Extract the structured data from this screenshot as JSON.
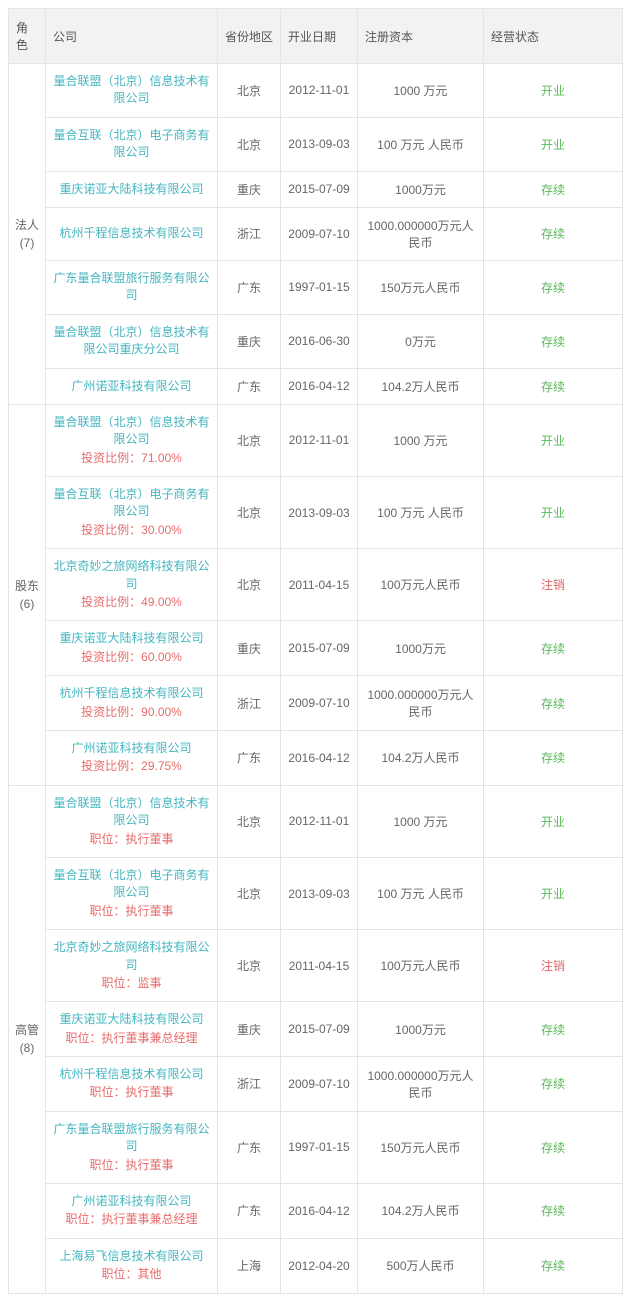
{
  "table": {
    "columns": [
      "角色",
      "公司",
      "省份地区",
      "开业日期",
      "注册资本",
      "经营状态"
    ],
    "colors": {
      "company": "#45b6c0",
      "sub": "#e96b6b",
      "status_green": "#5cb85c",
      "status_red": "#e06666",
      "header_bg": "#f2f2f2",
      "border": "#e4e4e4",
      "text": "#666666"
    },
    "sections": [
      {
        "role": "法人",
        "count": "(7)",
        "rows": [
          {
            "company": "量合联盟（北京）信息技术有限公司",
            "sub": "",
            "province": "北京",
            "date": "2012-11-01",
            "capital": "1000 万元",
            "status": "开业",
            "status_color": "green"
          },
          {
            "company": "量合互联（北京）电子商务有限公司",
            "sub": "",
            "province": "北京",
            "date": "2013-09-03",
            "capital": "100 万元 人民币",
            "status": "开业",
            "status_color": "green"
          },
          {
            "company": "重庆诺亚大陆科技有限公司",
            "sub": "",
            "province": "重庆",
            "date": "2015-07-09",
            "capital": "1000万元",
            "status": "存续",
            "status_color": "green"
          },
          {
            "company": "杭州千程信息技术有限公司",
            "sub": "",
            "province": "浙江",
            "date": "2009-07-10",
            "capital": "1000.000000万元人民币",
            "status": "存续",
            "status_color": "green"
          },
          {
            "company": "广东量合联盟旅行服务有限公司",
            "sub": "",
            "province": "广东",
            "date": "1997-01-15",
            "capital": "150万元人民币",
            "status": "存续",
            "status_color": "green"
          },
          {
            "company": "量合联盟（北京）信息技术有限公司重庆分公司",
            "sub": "",
            "province": "重庆",
            "date": "2016-06-30",
            "capital": "0万元",
            "status": "存续",
            "status_color": "green"
          },
          {
            "company": "广州诺亚科技有限公司",
            "sub": "",
            "province": "广东",
            "date": "2016-04-12",
            "capital": "104.2万人民币",
            "status": "存续",
            "status_color": "green"
          }
        ]
      },
      {
        "role": "股东",
        "count": "(6)",
        "rows": [
          {
            "company": "量合联盟（北京）信息技术有限公司",
            "sub": "投资比例：71.00%",
            "province": "北京",
            "date": "2012-11-01",
            "capital": "1000 万元",
            "status": "开业",
            "status_color": "green"
          },
          {
            "company": "量合互联（北京）电子商务有限公司",
            "sub": "投资比例：30.00%",
            "province": "北京",
            "date": "2013-09-03",
            "capital": "100 万元 人民币",
            "status": "开业",
            "status_color": "green"
          },
          {
            "company": "北京奇妙之旅网络科技有限公司",
            "sub": "投资比例：49.00%",
            "province": "北京",
            "date": "2011-04-15",
            "capital": "100万元人民币",
            "status": "注销",
            "status_color": "red"
          },
          {
            "company": "重庆诺亚大陆科技有限公司",
            "sub": "投资比例：60.00%",
            "province": "重庆",
            "date": "2015-07-09",
            "capital": "1000万元",
            "status": "存续",
            "status_color": "green"
          },
          {
            "company": "杭州千程信息技术有限公司",
            "sub": "投资比例：90.00%",
            "province": "浙江",
            "date": "2009-07-10",
            "capital": "1000.000000万元人民币",
            "status": "存续",
            "status_color": "green"
          },
          {
            "company": "广州诺亚科技有限公司",
            "sub": "投资比例：29.75%",
            "province": "广东",
            "date": "2016-04-12",
            "capital": "104.2万人民币",
            "status": "存续",
            "status_color": "green"
          }
        ]
      },
      {
        "role": "高管",
        "count": "(8)",
        "rows": [
          {
            "company": "量合联盟（北京）信息技术有限公司",
            "sub": "职位：执行董事",
            "province": "北京",
            "date": "2012-11-01",
            "capital": "1000 万元",
            "status": "开业",
            "status_color": "green"
          },
          {
            "company": "量合互联（北京）电子商务有限公司",
            "sub": "职位：执行董事",
            "province": "北京",
            "date": "2013-09-03",
            "capital": "100 万元 人民币",
            "status": "开业",
            "status_color": "green"
          },
          {
            "company": "北京奇妙之旅网络科技有限公司",
            "sub": "职位：监事",
            "province": "北京",
            "date": "2011-04-15",
            "capital": "100万元人民币",
            "status": "注销",
            "status_color": "red"
          },
          {
            "company": "重庆诺亚大陆科技有限公司",
            "sub": "职位：执行董事兼总经理",
            "province": "重庆",
            "date": "2015-07-09",
            "capital": "1000万元",
            "status": "存续",
            "status_color": "green"
          },
          {
            "company": "杭州千程信息技术有限公司",
            "sub": "职位：执行董事",
            "province": "浙江",
            "date": "2009-07-10",
            "capital": "1000.000000万元人民币",
            "status": "存续",
            "status_color": "green"
          },
          {
            "company": "广东量合联盟旅行服务有限公司",
            "sub": "职位：执行董事",
            "province": "广东",
            "date": "1997-01-15",
            "capital": "150万元人民币",
            "status": "存续",
            "status_color": "green"
          },
          {
            "company": "广州诺亚科技有限公司",
            "sub": "职位：执行董事兼总经理",
            "province": "广东",
            "date": "2016-04-12",
            "capital": "104.2万人民币",
            "status": "存续",
            "status_color": "green"
          },
          {
            "company": "上海易飞信息技术有限公司",
            "sub": "职位：其他",
            "province": "上海",
            "date": "2012-04-20",
            "capital": "500万人民币",
            "status": "存续",
            "status_color": "green"
          }
        ]
      }
    ]
  }
}
